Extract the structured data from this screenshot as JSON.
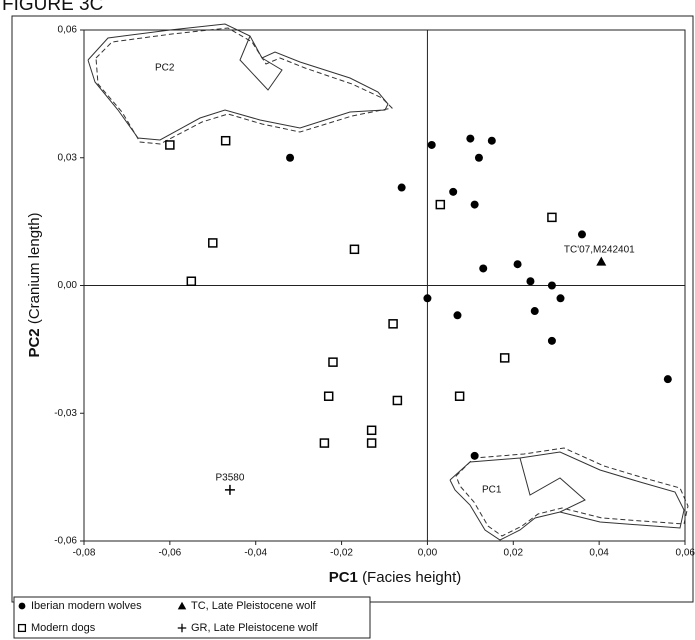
{
  "chart_data": {
    "type": "scatter",
    "title": "FIGURE 3C",
    "x_label": {
      "bold": "PC1",
      "rest": "(Facies height)"
    },
    "y_label": {
      "bold": "PC2",
      "rest": "(Cranium length)"
    },
    "xlim": [
      -0.08,
      0.06
    ],
    "ylim": [
      -0.06,
      0.06
    ],
    "xticks": [
      {
        "value": -0.08,
        "label": "-0,08"
      },
      {
        "value": -0.06,
        "label": "-0,06"
      },
      {
        "value": -0.04,
        "label": "-0,04"
      },
      {
        "value": -0.02,
        "label": "-0,02"
      },
      {
        "value": 0,
        "label": "0,00"
      },
      {
        "value": 0.02,
        "label": "0,02"
      },
      {
        "value": 0.04,
        "label": "0,04"
      },
      {
        "value": 0.06,
        "label": "0,06"
      }
    ],
    "yticks": [
      {
        "value": -0.06,
        "label": "-0,06"
      },
      {
        "value": -0.03,
        "label": "-0,03"
      },
      {
        "value": 0,
        "label": "0,00"
      },
      {
        "value": 0.03,
        "label": "0,03"
      },
      {
        "value": 0.06,
        "label": "0,06"
      }
    ],
    "outline_labels": [
      "PC2",
      "PC1"
    ],
    "series": [
      {
        "name": "Iberian modern wolves",
        "marker": "circle",
        "color": "#000000",
        "x": [
          -0.032,
          0.001,
          0.01,
          0.015,
          0.012,
          -0.006,
          0.006,
          0.011,
          0.036,
          0.013,
          0.021,
          0.024,
          0.029,
          0.031,
          0.0,
          0.025,
          0.007,
          0.029,
          0.056,
          0.011
        ],
        "y": [
          0.03,
          0.033,
          0.0345,
          0.034,
          0.03,
          0.023,
          0.022,
          0.019,
          0.012,
          0.004,
          0.005,
          0.001,
          0.0,
          -0.003,
          -0.003,
          -0.006,
          -0.007,
          -0.013,
          -0.022,
          -0.04
        ]
      },
      {
        "name": "Modern dogs",
        "marker": "square",
        "color": "#000000",
        "x": [
          -0.06,
          -0.047,
          0.003,
          0.029,
          -0.05,
          -0.017,
          -0.055,
          -0.008,
          -0.022,
          0.018,
          -0.023,
          -0.007,
          0.0075,
          -0.013,
          -0.013,
          -0.024
        ],
        "y": [
          0.033,
          0.034,
          0.019,
          0.016,
          0.01,
          0.0085,
          0.001,
          -0.009,
          -0.018,
          -0.017,
          -0.026,
          -0.027,
          -0.026,
          -0.034,
          -0.037,
          -0.037
        ]
      },
      {
        "name": "TC, Late Pleistocene wolf",
        "marker": "triangle",
        "color": "#000000",
        "x": [
          0.0405
        ],
        "y": [
          0.0056
        ],
        "labels": [
          "TC'07,M242401"
        ]
      },
      {
        "name": "GR, Late Pleistocene wolf",
        "marker": "plus",
        "color": "#000000",
        "x": [
          -0.046
        ],
        "y": [
          -0.048
        ],
        "labels": [
          "P3580"
        ]
      }
    ]
  }
}
